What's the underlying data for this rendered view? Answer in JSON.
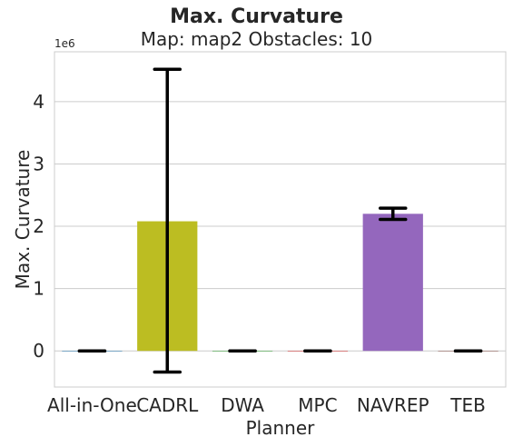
{
  "chart_data": {
    "type": "bar",
    "suptitle": "Max. Curvature",
    "title": "Map: map2 Obstacles: 10",
    "xlabel": "Planner",
    "ylabel": "Max. Curvature",
    "offset_label": "1e6",
    "categories": [
      "All-in-One",
      "CADRL",
      "DWA",
      "MPC",
      "NAVREP",
      "TEB"
    ],
    "values": [
      0,
      2080000,
      0,
      0,
      2200000,
      0
    ],
    "error_low": [
      0,
      -340000,
      0,
      0,
      2110000,
      0
    ],
    "error_high": [
      0,
      4520000,
      0,
      0,
      2290000,
      0
    ],
    "bar_colors": [
      "#1f77b4",
      "#bcbd22",
      "#2ca02c",
      "#d62728",
      "#9467bd",
      "#8c564b"
    ],
    "ylim": [
      -580000,
      4800000
    ],
    "yticks": [
      0,
      1000000,
      2000000,
      3000000,
      4000000
    ],
    "ytick_labels": [
      "0",
      "1",
      "2",
      "3",
      "4"
    ],
    "grid": true
  }
}
